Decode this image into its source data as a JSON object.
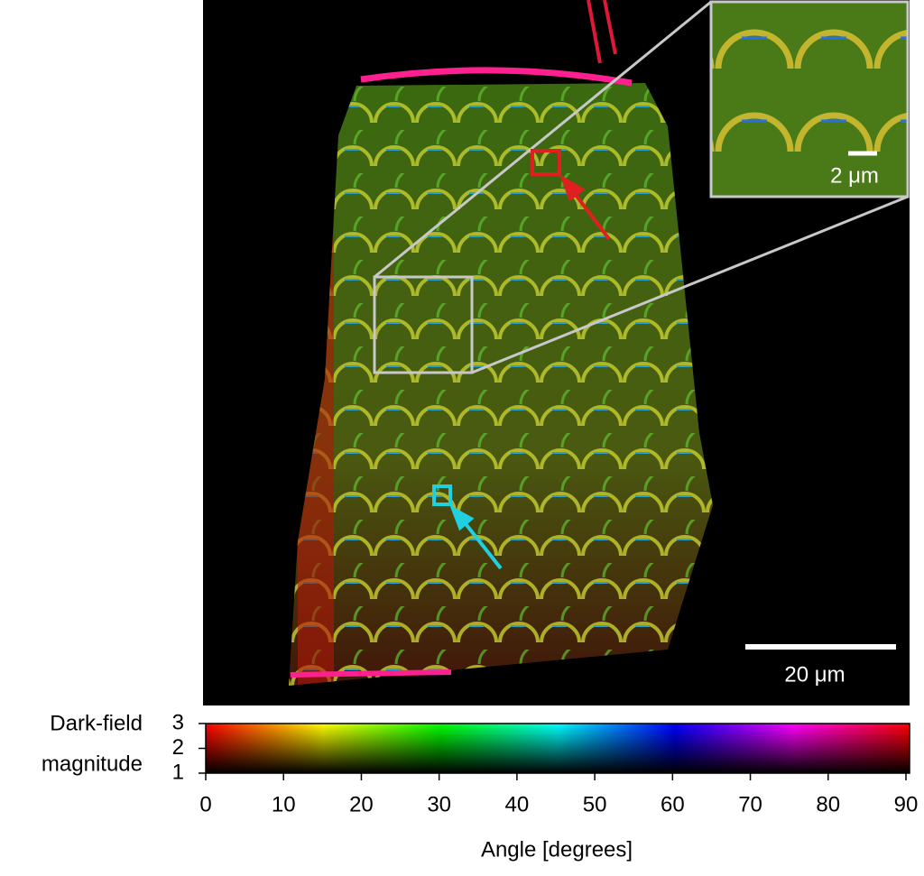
{
  "image": {
    "inset_scale_bar": "2 μm",
    "scale_bar": "20 μm"
  },
  "colorbar": {
    "ylabel": [
      "Dark-field",
      "magnitude"
    ],
    "ylim": [
      1,
      3
    ],
    "yticks": [
      1,
      2,
      3
    ],
    "xlim": [
      0,
      90
    ],
    "xticks": [
      0,
      10,
      20,
      30,
      40,
      50,
      60,
      70,
      80,
      90
    ],
    "xlabel": "Angle [degrees]"
  }
}
